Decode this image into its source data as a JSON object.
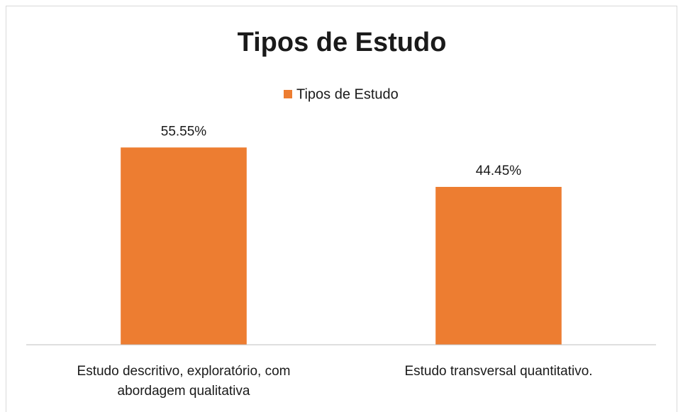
{
  "chart_data": {
    "type": "bar",
    "title": "Tipos de Estudo",
    "categories": [
      "Estudo descritivo, exploratório, com abordagem qualitativa",
      "Estudo transversal quantitativo."
    ],
    "series": [
      {
        "name": "Tipos de Estudo",
        "color": "#ed7d31",
        "values": [
          55.55,
          44.45
        ],
        "value_labels": [
          "55.55%",
          "44.45%"
        ]
      }
    ],
    "ylim": [
      0,
      60
    ],
    "legend": "top"
  }
}
